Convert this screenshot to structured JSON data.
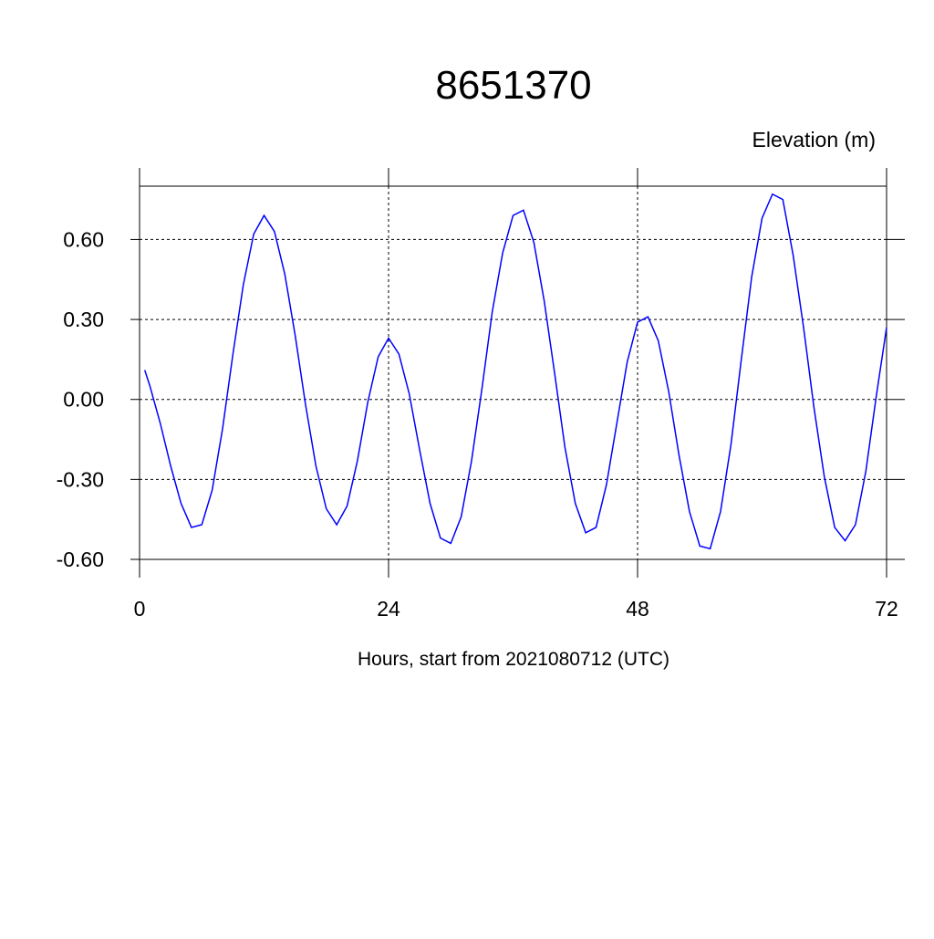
{
  "chart_data": {
    "type": "line",
    "title": "8651370",
    "ylabel": "Elevation (m)",
    "xlabel": "Hours, start from 2021080712 (UTC)",
    "x": [
      0.5,
      1,
      2,
      3,
      4,
      5,
      6,
      7,
      8,
      9,
      10,
      11,
      12,
      13,
      14,
      15,
      16,
      17,
      18,
      19,
      20,
      21,
      22,
      23,
      24,
      25,
      26,
      27,
      28,
      29,
      30,
      31,
      32,
      33,
      34,
      35,
      36,
      37,
      38,
      39,
      40,
      41,
      42,
      43,
      44,
      45,
      46,
      47,
      48,
      49,
      50,
      51,
      52,
      53,
      54,
      55,
      56,
      57,
      58,
      59,
      60,
      61,
      62,
      63,
      64,
      65,
      66,
      67,
      68,
      69,
      70,
      71,
      72
    ],
    "series": [
      {
        "color": "#0000ff",
        "values": [
          0.11,
          0.05,
          -0.09,
          -0.25,
          -0.39,
          -0.48,
          -0.47,
          -0.34,
          -0.11,
          0.17,
          0.43,
          0.62,
          0.69,
          0.63,
          0.47,
          0.24,
          -0.02,
          -0.25,
          -0.41,
          -0.47,
          -0.4,
          -0.23,
          -0.01,
          0.16,
          0.23,
          0.17,
          0.02,
          -0.19,
          -0.39,
          -0.52,
          -0.54,
          -0.44,
          -0.23,
          0.04,
          0.33,
          0.55,
          0.69,
          0.71,
          0.59,
          0.37,
          0.1,
          -0.18,
          -0.39,
          -0.5,
          -0.48,
          -0.32,
          -0.09,
          0.14,
          0.29,
          0.31,
          0.22,
          0.03,
          -0.21,
          -0.42,
          -0.55,
          -0.56,
          -0.42,
          -0.17,
          0.15,
          0.46,
          0.68,
          0.77,
          0.75,
          0.54,
          0.27,
          -0.03,
          -0.29,
          -0.48,
          -0.53,
          -0.47,
          -0.27,
          0.01,
          0.27
        ]
      }
    ],
    "xlim": [
      0,
      72
    ],
    "xticks": [
      0,
      24,
      48,
      72
    ],
    "ylim": [
      -0.6,
      0.8
    ],
    "yticks": [
      {
        "value": -0.6,
        "label": "-0.60"
      },
      {
        "value": -0.3,
        "label": "-0.30"
      },
      {
        "value": 0,
        "label": "0.00"
      },
      {
        "value": 0.3,
        "label": "0.30"
      },
      {
        "value": 0.6,
        "label": "0.60"
      }
    ],
    "grid": true
  }
}
